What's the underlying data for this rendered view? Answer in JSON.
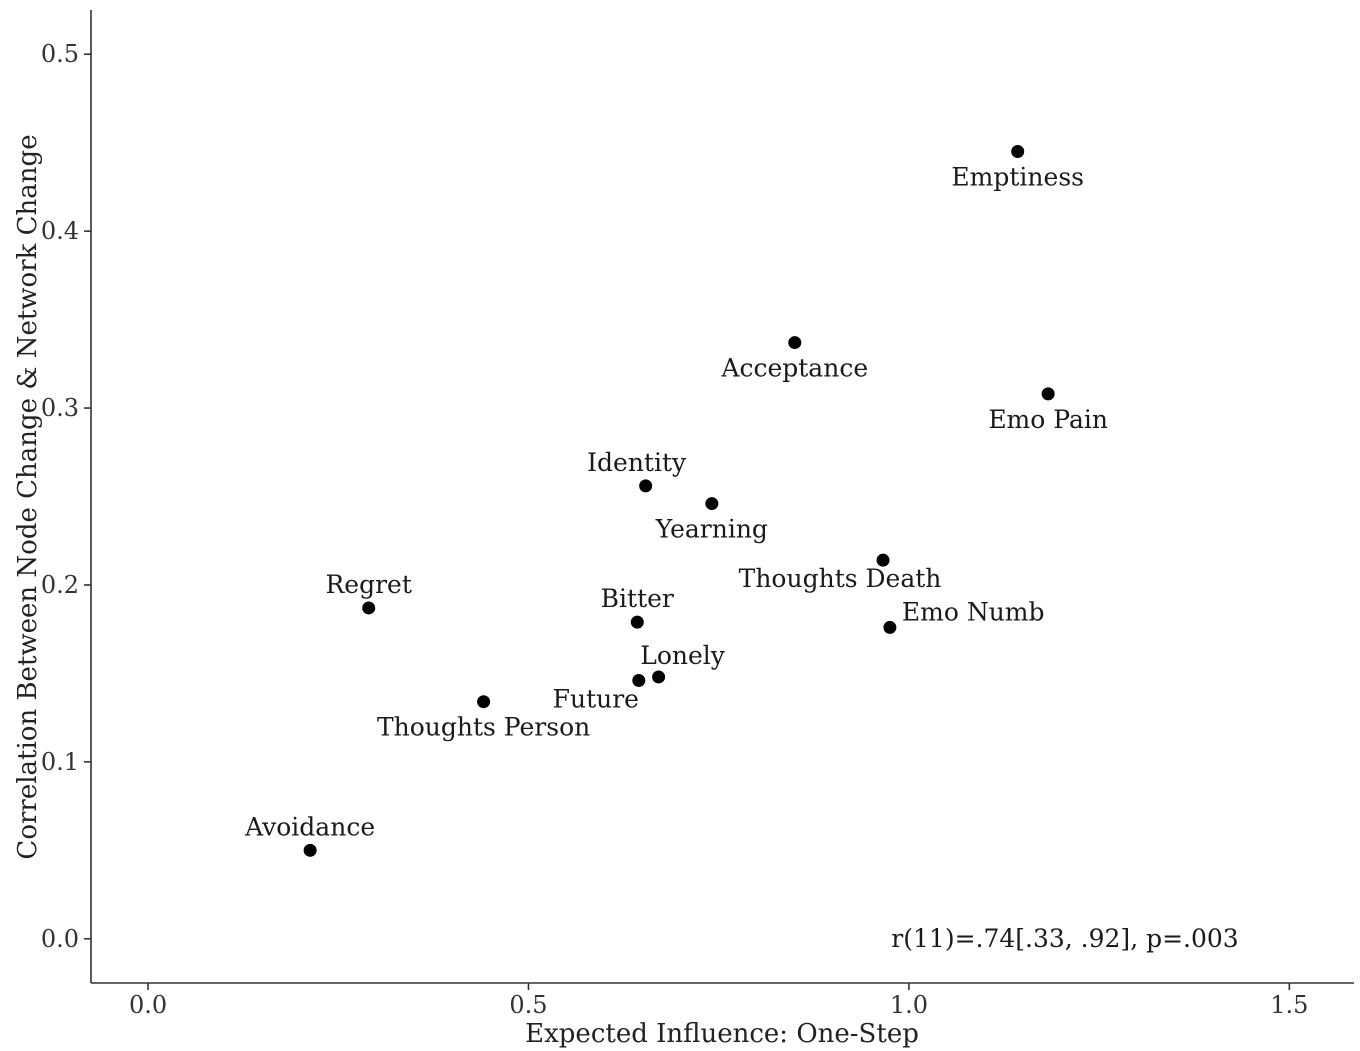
{
  "chart_data": {
    "type": "scatter",
    "title": "",
    "xlabel": "Expected Influence: One-Step",
    "ylabel": "Correlation Between Node Change & Network Change",
    "xlim": [
      -0.075,
      1.585
    ],
    "ylim": [
      -0.025,
      0.525
    ],
    "xticks": [
      0.0,
      0.5,
      1.0,
      1.5
    ],
    "xtick_labels": [
      "0.0",
      "0.5",
      "1.0",
      "1.5"
    ],
    "yticks": [
      0.0,
      0.1,
      0.2,
      0.3,
      0.4,
      0.5
    ],
    "ytick_labels": [
      "0.0",
      "0.1",
      "0.2",
      "0.3",
      "0.4",
      "0.5"
    ],
    "grid": false,
    "legend": "none",
    "point_color": "#000000",
    "points": [
      {
        "label": "Emptiness",
        "x": 1.143,
        "y": 0.445,
        "label_pos": "below"
      },
      {
        "label": "Acceptance",
        "x": 0.85,
        "y": 0.337,
        "label_pos": "below"
      },
      {
        "label": "Emo Pain",
        "x": 1.183,
        "y": 0.308,
        "label_pos": "below"
      },
      {
        "label": "Identity",
        "x": 0.654,
        "y": 0.256,
        "label_pos": "above-left"
      },
      {
        "label": "Yearning",
        "x": 0.741,
        "y": 0.246,
        "label_pos": "below"
      },
      {
        "label": "Thoughts Death",
        "x": 0.966,
        "y": 0.214,
        "label_pos": "below-left"
      },
      {
        "label": "Regret",
        "x": 0.29,
        "y": 0.187,
        "label_pos": "above"
      },
      {
        "label": "Bitter",
        "x": 0.643,
        "y": 0.179,
        "label_pos": "above"
      },
      {
        "label": "Emo Numb",
        "x": 0.975,
        "y": 0.176,
        "label_pos": "upper-right"
      },
      {
        "label": "Lonely",
        "x": 0.671,
        "y": 0.148,
        "label_pos": "above-right"
      },
      {
        "label": "Future",
        "x": 0.645,
        "y": 0.146,
        "label_pos": "below-left"
      },
      {
        "label": "Thoughts Person",
        "x": 0.441,
        "y": 0.134,
        "label_pos": "below"
      },
      {
        "label": "Avoidance",
        "x": 0.213,
        "y": 0.05,
        "label_pos": "above"
      }
    ],
    "annotation": "r(11)=.74[.33, .92], p=.003"
  }
}
